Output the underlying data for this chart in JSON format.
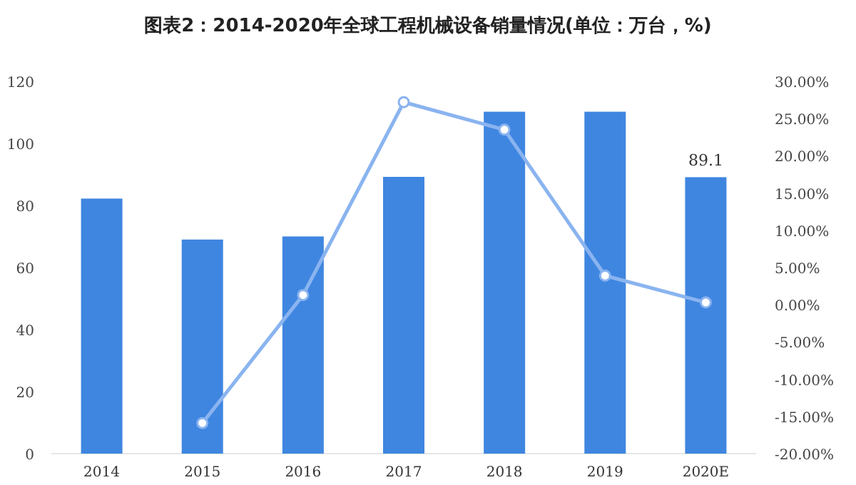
{
  "chart_data": {
    "type": "bar",
    "title": "图表2：2014-2020年全球工程机械设备销量情况(单位：万台，%)",
    "categories": [
      "2014",
      "2015",
      "2016",
      "2017",
      "2018",
      "2019",
      "2020E"
    ],
    "series": [
      {
        "color": "#3f86e0",
        "values": [
          82.2,
          69,
          70,
          89.2,
          110.2,
          110.2,
          89.1
        ],
        "value_labels": [
          null,
          null,
          null,
          null,
          null,
          null,
          "89.1"
        ]
      },
      {
        "type": "line",
        "axis": "y2",
        "color": "#8ab4f0",
        "marker": "circle",
        "values": [
          null,
          -15.9,
          1.3,
          27.2,
          23.5,
          3.9,
          0.3
        ]
      }
    ],
    "ylim": [
      0,
      120
    ],
    "yticks": [
      0,
      20,
      40,
      60,
      80,
      100,
      120
    ],
    "y2lim": [
      -20,
      30
    ],
    "y2ticks": [
      {
        "value": -20,
        "label": "-20.00%"
      },
      {
        "value": -15,
        "label": "-15.00%"
      },
      {
        "value": -10,
        "label": "-10.00%"
      },
      {
        "value": -5,
        "label": "-5.00%"
      },
      {
        "value": 0,
        "label": "0.00%"
      },
      {
        "value": 5,
        "label": "5.00%"
      },
      {
        "value": 10,
        "label": "10.00%"
      },
      {
        "value": 15,
        "label": "15.00%"
      },
      {
        "value": 20,
        "label": "20.00%"
      },
      {
        "value": 25,
        "label": "25.00%"
      },
      {
        "value": 30,
        "label": "30.00%"
      }
    ]
  }
}
